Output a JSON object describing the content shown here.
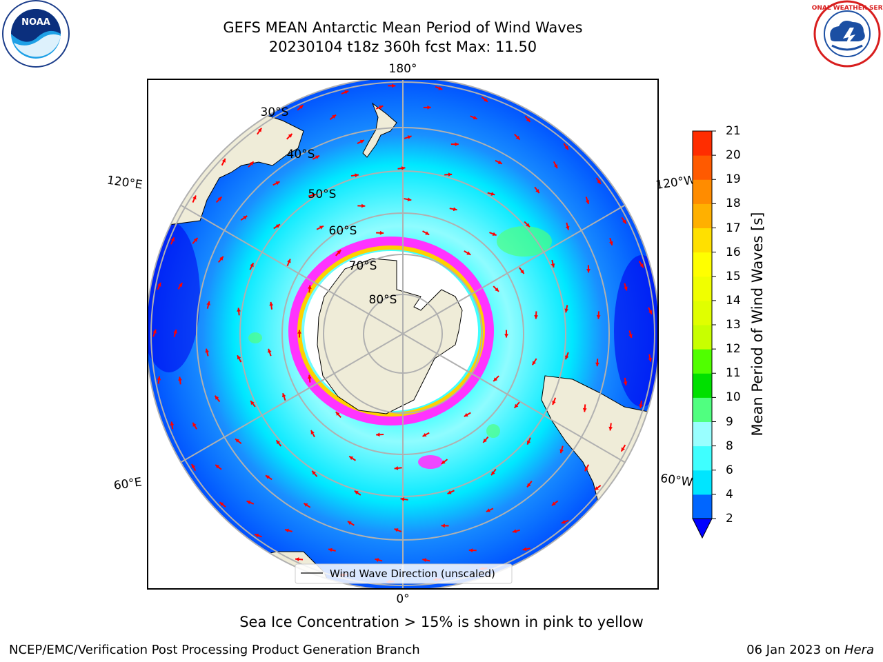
{
  "title": {
    "line1": "GEFS MEAN Antarctic Mean Period of Wind Waves",
    "line2": "20230104 t18z 360h fcst   Max: 11.50"
  },
  "map": {
    "projection": "south polar stereographic",
    "longitude_labels": {
      "top": "180°",
      "bottom": "0°",
      "upper_left": "120°E",
      "lower_left": "60°E",
      "upper_right": "120°W",
      "lower_right": "60°W"
    },
    "latitude_labels": [
      "30°S",
      "40°S",
      "50°S",
      "60°S",
      "70°S",
      "80°S"
    ],
    "legend_label": "Wind Wave Direction (unscaled)",
    "land_color": "#efecd8",
    "arrow_color": "#ff0000",
    "sea_ice_colors": [
      "#ff00ff",
      "#ffd000",
      "#ffffff"
    ]
  },
  "colorbar": {
    "title": "Mean Period of Wind Waves [s]",
    "ticks": [
      "2",
      "4",
      "6",
      "8",
      "9",
      "10",
      "11",
      "12",
      "13",
      "14",
      "15",
      "16",
      "17",
      "18",
      "19",
      "20",
      "21"
    ],
    "colors": [
      "#0066ff",
      "#00e5ff",
      "#3fffff",
      "#99ffff",
      "#50ff80",
      "#00e000",
      "#50ff00",
      "#c8ff00",
      "#e0ff00",
      "#f0ff00",
      "#ffff00",
      "#ffe000",
      "#ffb000",
      "#ff8c00",
      "#ff5a00",
      "#ff2d00",
      "#ff0000"
    ],
    "extend_color": "#0000ff"
  },
  "footer": {
    "note": "Sea Ice Concentration > 15% is shown in pink to yellow",
    "credit_left": "NCEP/EMC/Verification Post Processing Product Generation Branch",
    "date": "06 Jan 2023 on",
    "host": "Hera"
  },
  "logos": {
    "noaa_text": "NOAA",
    "nws_text": "NATIONAL WEATHER SERVICE"
  }
}
